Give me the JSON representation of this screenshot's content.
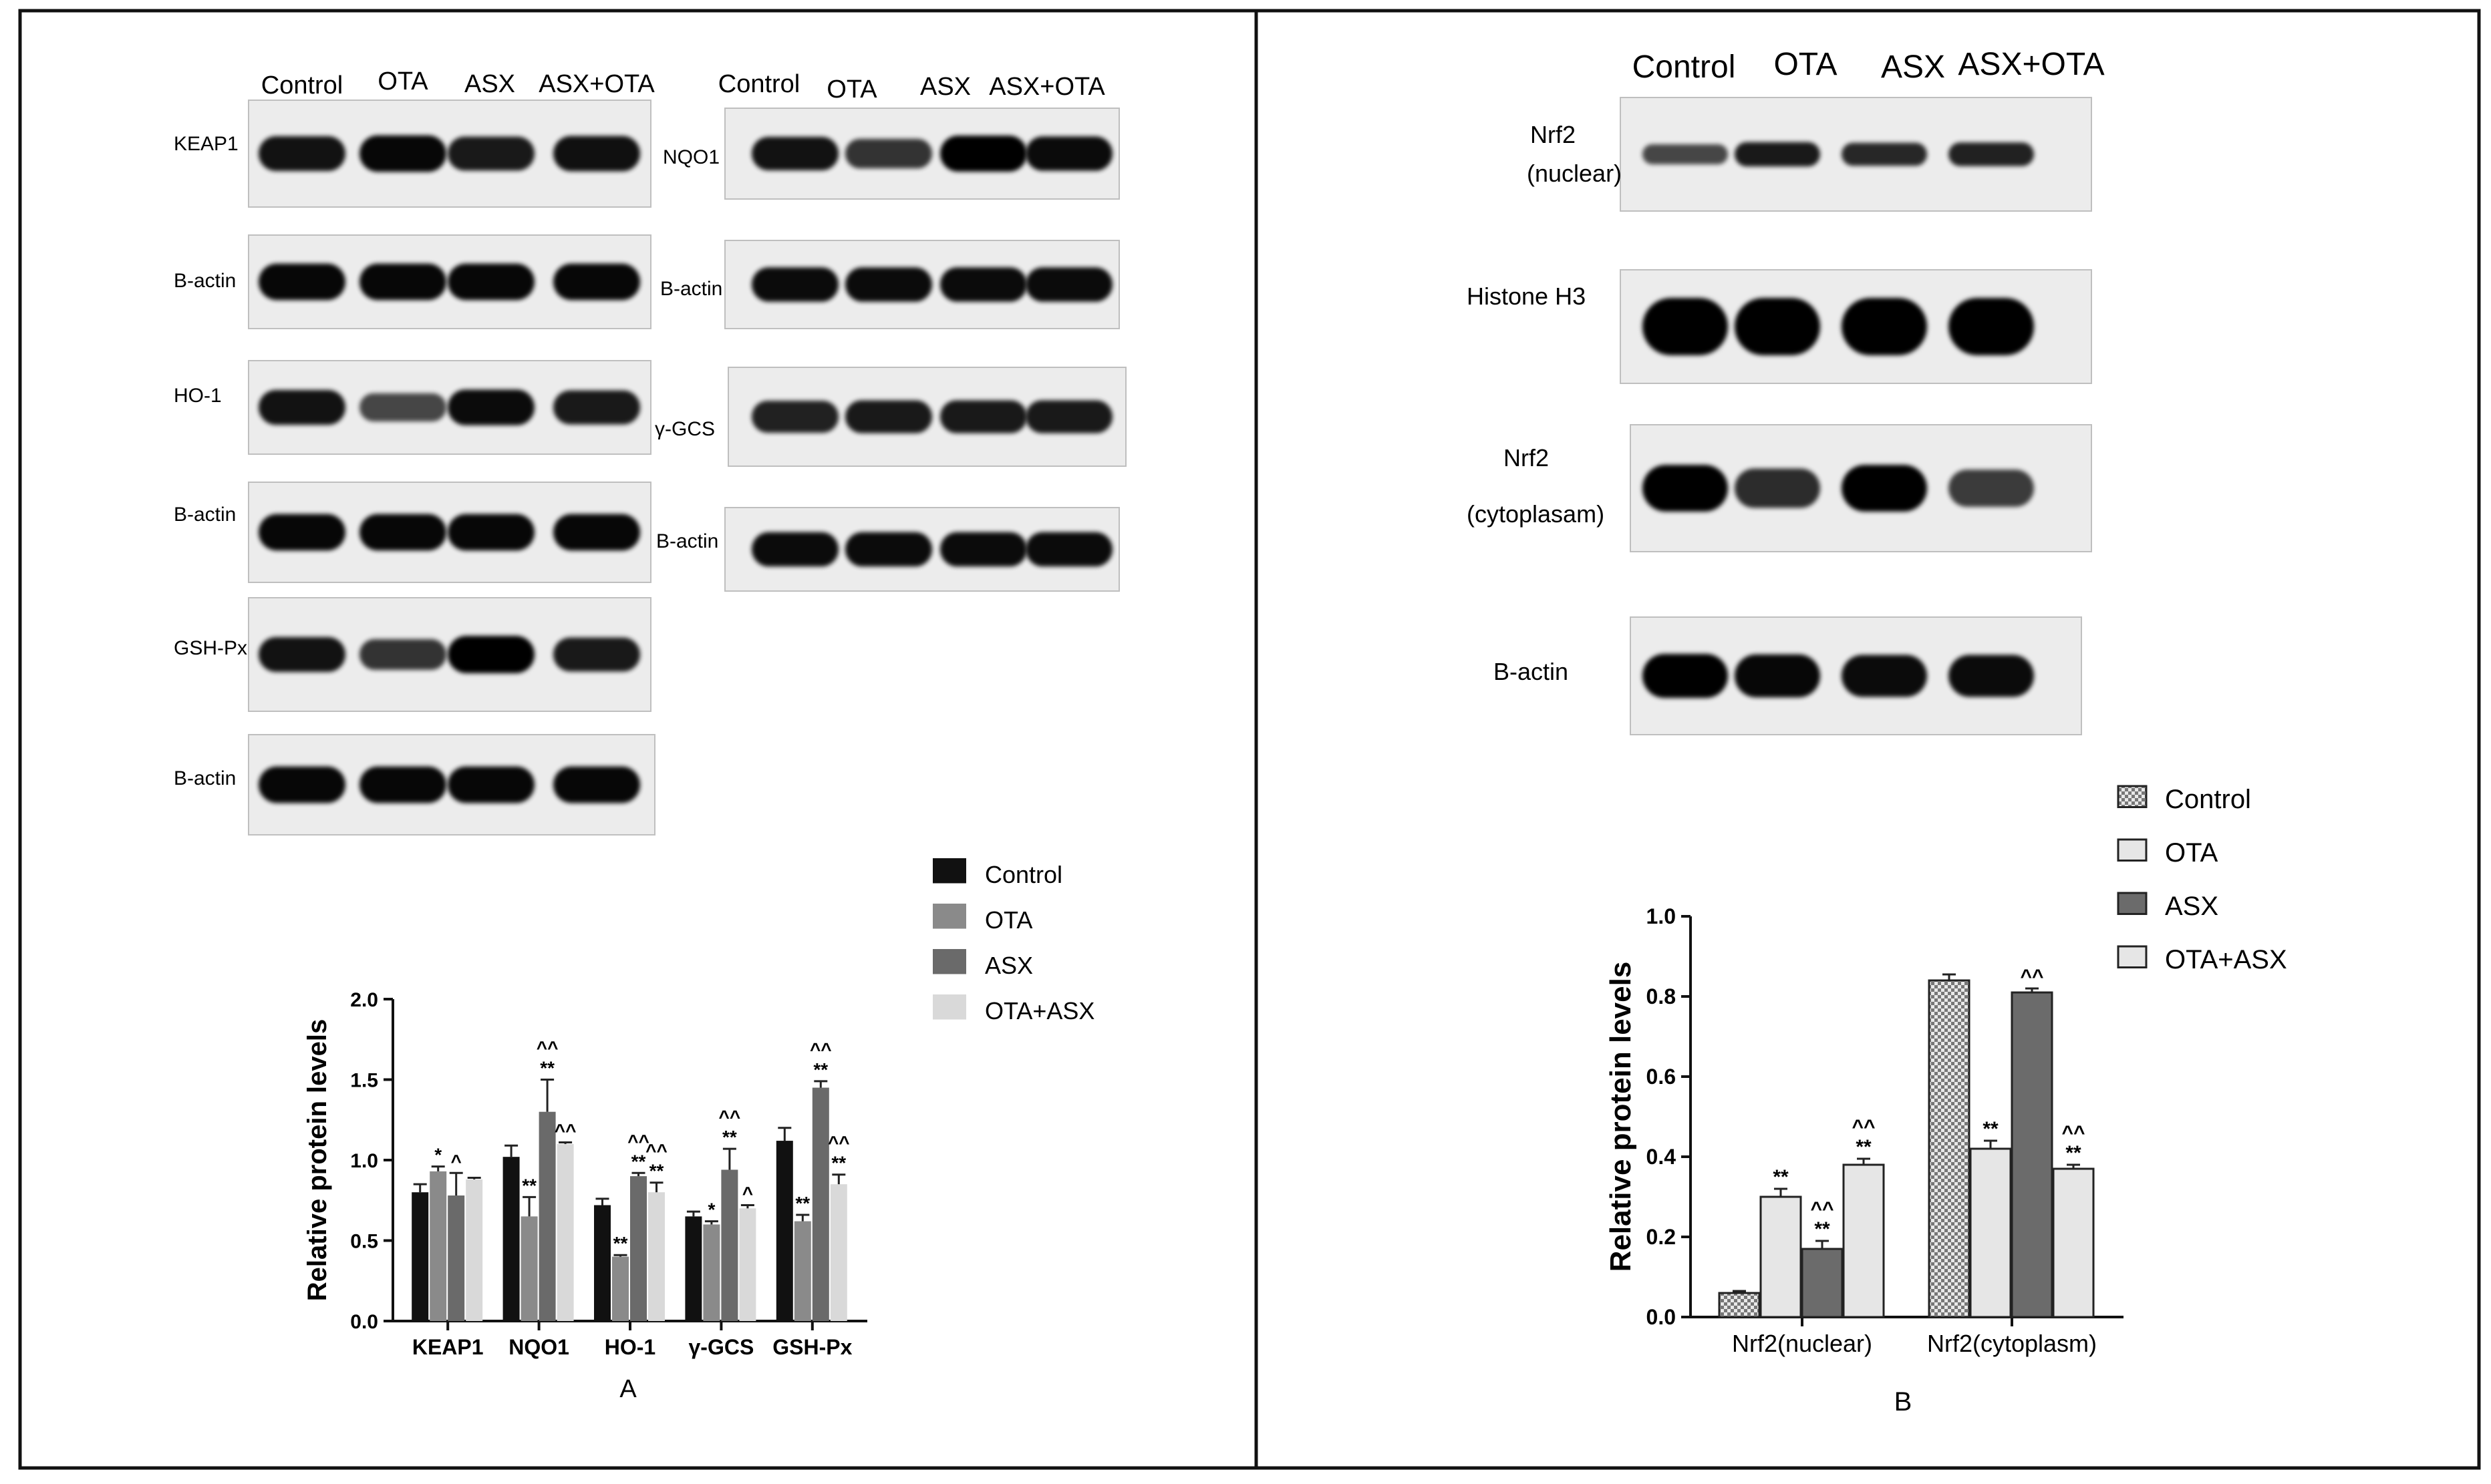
{
  "panel_a": {
    "lanes": [
      "Control",
      "OTA",
      "ASX",
      "ASX+OTA"
    ],
    "lanes_right": [
      "Control",
      "OTA",
      "ASX",
      "ASX+OTA"
    ],
    "blots_left": [
      {
        "label": "KEAP1",
        "intensity": [
          0.85,
          0.95,
          0.8,
          0.88
        ]
      },
      {
        "label": "B-actin",
        "intensity": [
          0.95,
          0.95,
          0.95,
          0.95
        ]
      },
      {
        "label": "HO-1",
        "intensity": [
          0.85,
          0.45,
          0.9,
          0.8
        ]
      },
      {
        "label": "B-actin",
        "intensity": [
          0.95,
          0.95,
          0.95,
          0.95
        ]
      },
      {
        "label": "GSH-Px",
        "intensity": [
          0.85,
          0.6,
          1.0,
          0.8
        ]
      },
      {
        "label": "B-actin",
        "intensity": [
          0.95,
          0.95,
          0.95,
          0.95
        ]
      }
    ],
    "blots_right": [
      {
        "label": "NQO1",
        "intensity": [
          0.85,
          0.6,
          1.0,
          0.9
        ]
      },
      {
        "label": "B-actin",
        "intensity": [
          0.9,
          0.9,
          0.9,
          0.9
        ]
      },
      {
        "label": "γ-GCS",
        "intensity": [
          0.75,
          0.8,
          0.8,
          0.8
        ]
      },
      {
        "label": "B-actin",
        "intensity": [
          0.9,
          0.9,
          0.9,
          0.9
        ]
      }
    ],
    "panel_letter": "A"
  },
  "panel_b": {
    "lanes": [
      "Control",
      "OTA",
      "ASX",
      "ASX+OTA"
    ],
    "blots": [
      {
        "label": "Nrf2",
        "label2": "(nuclear)",
        "intensity": [
          0.45,
          0.8,
          0.7,
          0.75
        ]
      },
      {
        "label": "Histone H3",
        "label2": "",
        "intensity": [
          1.0,
          1.0,
          1.0,
          1.0
        ]
      },
      {
        "label": "Nrf2",
        "label2": "(cytoplasam)",
        "intensity": [
          1.0,
          0.65,
          1.0,
          0.55
        ]
      },
      {
        "label": "B-actin",
        "label2": "",
        "intensity": [
          1.0,
          0.95,
          0.9,
          0.9
        ]
      }
    ],
    "panel_letter": "B"
  },
  "chart_data": [
    {
      "type": "bar",
      "title": "",
      "ylabel": "Relative protein levels",
      "xlabel": "",
      "ylim": [
        0,
        2.0
      ],
      "yticks": [
        "0.0",
        "0.5",
        "1.0",
        "1.5",
        "2.0"
      ],
      "categories": [
        "KEAP1",
        "NQO1",
        "HO-1",
        "γ-GCS",
        "GSH-Px"
      ],
      "legend_position": "top-right",
      "series": [
        {
          "name": "Control",
          "color": "#111111",
          "values": [
            0.8,
            1.02,
            0.72,
            0.65,
            1.12
          ],
          "errors": [
            0.05,
            0.07,
            0.04,
            0.03,
            0.08
          ],
          "marks": [
            "",
            "",
            "",
            "",
            ""
          ]
        },
        {
          "name": "OTA",
          "color": "#8a8a8a",
          "values": [
            0.93,
            0.65,
            0.4,
            0.6,
            0.62
          ],
          "errors": [
            0.03,
            0.12,
            0.01,
            0.02,
            0.04
          ],
          "marks": [
            "*",
            "**",
            "**",
            "*",
            "**"
          ]
        },
        {
          "name": "ASX",
          "color": "#6a6a6a",
          "values": [
            0.78,
            1.3,
            0.9,
            0.94,
            1.45
          ],
          "errors": [
            0.14,
            0.2,
            0.02,
            0.13,
            0.04
          ],
          "marks": [
            "^",
            "^^\n**",
            "^^\n**",
            "^^\n**",
            "^^\n**"
          ]
        },
        {
          "name": "OTA+ASX",
          "color": "#d9d9d9",
          "values": [
            0.88,
            1.1,
            0.8,
            0.7,
            0.85
          ],
          "errors": [
            0.01,
            0.01,
            0.06,
            0.02,
            0.06
          ],
          "marks": [
            "",
            "^^",
            "^^\n**",
            "^",
            "^^\n**"
          ]
        }
      ]
    },
    {
      "type": "bar",
      "title": "",
      "ylabel": "Relative protein levels",
      "xlabel": "",
      "ylim": [
        0,
        1.0
      ],
      "yticks": [
        "0.0",
        "0.2",
        "0.4",
        "0.6",
        "0.8",
        "1.0"
      ],
      "categories": [
        "Nrf2(nuclear)",
        "Nrf2(cytoplasm)"
      ],
      "legend_position": "top-left",
      "series": [
        {
          "name": "Control",
          "color": "#bdbdbd",
          "pattern": "check",
          "values": [
            0.06,
            0.84
          ],
          "errors": [
            0.005,
            0.015
          ],
          "marks": [
            "",
            ""
          ]
        },
        {
          "name": "OTA",
          "color": "#e6e6e6",
          "values": [
            0.3,
            0.42
          ],
          "errors": [
            0.02,
            0.02
          ],
          "marks": [
            "**",
            "**"
          ]
        },
        {
          "name": "ASX",
          "color": "#6b6b6b",
          "values": [
            0.17,
            0.81
          ],
          "errors": [
            0.02,
            0.01
          ],
          "marks": [
            "^^\n**",
            "^^"
          ]
        },
        {
          "name": "OTA+ASX",
          "color": "#e6e6e6",
          "values": [
            0.38,
            0.37
          ],
          "errors": [
            0.015,
            0.01
          ],
          "marks": [
            "^^\n**",
            "^^\n**"
          ]
        }
      ]
    }
  ]
}
